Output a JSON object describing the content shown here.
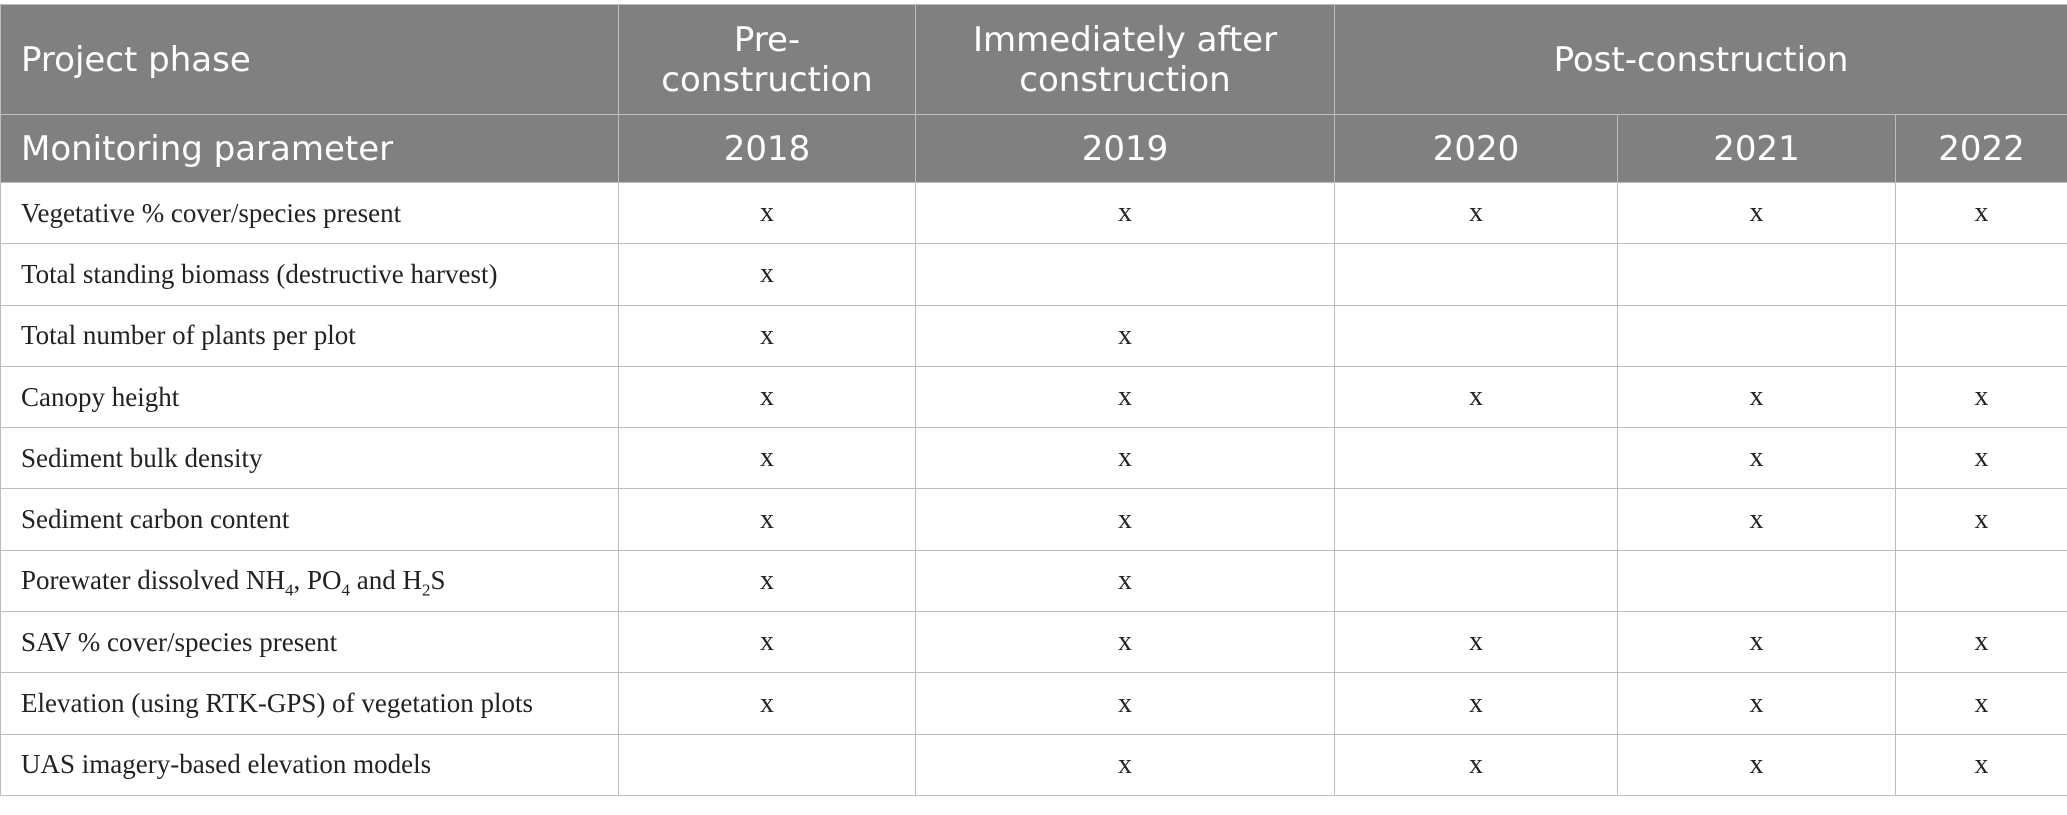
{
  "table": {
    "header_row1": {
      "label": "Project phase",
      "phases": [
        {
          "label": "Pre-\nconstruction"
        },
        {
          "label": "Immediately after construction"
        },
        {
          "label": "Post-construction"
        }
      ]
    },
    "header_row2": {
      "label": "Monitoring parameter",
      "years": [
        "2018",
        "2019",
        "2020",
        "2021",
        "2022"
      ]
    },
    "rows": [
      {
        "parameter": "Vegetative % cover/species present",
        "cells": [
          "x",
          "x",
          "x",
          "x",
          "x"
        ]
      },
      {
        "parameter": "Total standing biomass (destructive harvest)",
        "cells": [
          "x",
          "",
          "",
          "",
          ""
        ]
      },
      {
        "parameter": "Total number of plants per plot",
        "cells": [
          "x",
          "x",
          "",
          "",
          ""
        ]
      },
      {
        "parameter": "Canopy height",
        "cells": [
          "x",
          "x",
          "x",
          "x",
          "x"
        ]
      },
      {
        "parameter": "Sediment bulk density",
        "cells": [
          "x",
          "x",
          "",
          "x",
          "x"
        ]
      },
      {
        "parameter": "Sediment carbon content",
        "cells": [
          "x",
          "x",
          "",
          "x",
          "x"
        ]
      },
      {
        "parameter": "Porewater dissolved NH4, PO4 and H2S",
        "parameter_parts": [
          "Porewater dissolved NH",
          "4",
          ", PO",
          "4",
          " and H",
          "2",
          "S"
        ],
        "cells": [
          "x",
          "x",
          "",
          "",
          ""
        ]
      },
      {
        "parameter": "SAV % cover/species present",
        "cells": [
          "x",
          "x",
          "x",
          "x",
          "x"
        ]
      },
      {
        "parameter": "Elevation (using RTK-GPS) of vegetation plots",
        "cells": [
          "x",
          "x",
          "x",
          "x",
          "x"
        ]
      },
      {
        "parameter": "UAS imagery-based elevation models",
        "cells": [
          "",
          "x",
          "x",
          "x",
          "x"
        ]
      }
    ]
  }
}
